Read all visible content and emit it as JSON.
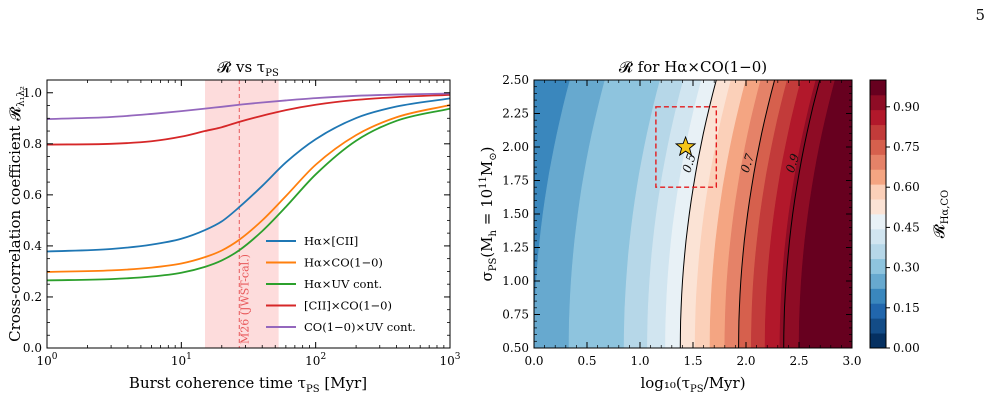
{
  "page_number": "5",
  "chart_data": [
    {
      "type": "line",
      "title": "𝓡 vs τ",
      "title_sub": "PS",
      "xlabel": "Burst coherence time τ",
      "xlabel_sub": "PS",
      "xlabel_unit": " [Myr]",
      "ylabel": "Cross-correlation coefficient 𝓡",
      "ylabel_sub": "λ₁λ₂",
      "x_scale": "log",
      "xlim": [
        1,
        1000
      ],
      "ylim": [
        0,
        1.05
      ],
      "x_ticks": [
        {
          "v": 1,
          "base": "10",
          "exp": "0"
        },
        {
          "v": 10,
          "base": "10",
          "exp": "1"
        },
        {
          "v": 100,
          "base": "10",
          "exp": "2"
        },
        {
          "v": 1000,
          "base": "10",
          "exp": "3"
        }
      ],
      "y_ticks": [
        {
          "v": 0.0,
          "label": "0.0"
        },
        {
          "v": 0.2,
          "label": "0.2"
        },
        {
          "v": 0.4,
          "label": "0.4"
        },
        {
          "v": 0.6,
          "label": "0.6"
        },
        {
          "v": 0.8,
          "label": "0.8"
        },
        {
          "v": 1.0,
          "label": "1.0"
        }
      ],
      "shaded_band": {
        "x_range": [
          15,
          53
        ],
        "color": "#fddcdc"
      },
      "vline": {
        "x": 27,
        "color": "#e8585a",
        "label": "M26 (JWST-cal.)"
      },
      "legend_position": "lower-right",
      "series": [
        {
          "name": "Hα×[CII]",
          "color": "#1f77b4",
          "x": [
            1,
            3,
            6,
            10,
            15,
            20,
            27,
            40,
            60,
            100,
            200,
            400,
            1000
          ],
          "y": [
            0.378,
            0.388,
            0.405,
            0.428,
            0.462,
            0.496,
            0.552,
            0.635,
            0.727,
            0.818,
            0.901,
            0.946,
            0.978
          ]
        },
        {
          "name": "Hα×CO(1−0)",
          "color": "#ff7f0e",
          "x": [
            1,
            3,
            6,
            10,
            15,
            20,
            27,
            40,
            60,
            100,
            200,
            400,
            1000
          ],
          "y": [
            0.298,
            0.304,
            0.315,
            0.331,
            0.356,
            0.382,
            0.424,
            0.5,
            0.595,
            0.718,
            0.834,
            0.904,
            0.952
          ]
        },
        {
          "name": "Hα×UV cont.",
          "color": "#2ca02c",
          "x": [
            1,
            3,
            6,
            10,
            15,
            20,
            27,
            40,
            60,
            100,
            200,
            400,
            1000
          ],
          "y": [
            0.265,
            0.27,
            0.28,
            0.295,
            0.318,
            0.343,
            0.383,
            0.458,
            0.553,
            0.68,
            0.812,
            0.89,
            0.938
          ]
        },
        {
          "name": "[CII]×CO(1−0)",
          "color": "#d62728",
          "x": [
            1,
            3,
            6,
            10,
            15,
            20,
            27,
            40,
            60,
            100,
            200,
            400,
            1000
          ],
          "y": [
            0.797,
            0.8,
            0.81,
            0.828,
            0.85,
            0.865,
            0.886,
            0.91,
            0.932,
            0.953,
            0.972,
            0.983,
            0.992
          ]
        },
        {
          "name": "CO(1−0)×UV cont.",
          "color": "#9467bd",
          "x": [
            1,
            3,
            6,
            10,
            15,
            20,
            27,
            40,
            60,
            100,
            200,
            400,
            1000
          ],
          "y": [
            0.897,
            0.905,
            0.917,
            0.928,
            0.938,
            0.945,
            0.953,
            0.962,
            0.97,
            0.979,
            0.988,
            0.993,
            0.997
          ]
        }
      ]
    },
    {
      "type": "heatmap",
      "title": "𝓡 for Hα×CO(1−0)",
      "xlabel": "log₁₀(τ",
      "xlabel_sub": "PS",
      "xlabel_tail": "/Myr)",
      "ylabel": "σ",
      "ylabel_sub": "PS",
      "ylabel_tail": "(M",
      "ylabel_sub2": "h",
      "ylabel_tail2": " = 10",
      "ylabel_sup": "11",
      "ylabel_tail3": "M",
      "ylabel_sub3": "⊙",
      "ylabel_end": ")",
      "xlim": [
        0.0,
        3.0
      ],
      "ylim": [
        0.5,
        2.5
      ],
      "x_ticks": [
        "0.0",
        "0.5",
        "1.0",
        "1.5",
        "2.0",
        "2.5",
        "3.0"
      ],
      "y_ticks": [
        "0.50",
        "0.75",
        "1.00",
        "1.25",
        "1.50",
        "1.75",
        "2.00",
        "2.25",
        "2.50"
      ],
      "colorbar": {
        "label": "𝓡",
        "label_sub": "Hα,CO",
        "range": [
          0.0,
          1.0
        ],
        "ticks": [
          "0.00",
          "0.15",
          "0.30",
          "0.45",
          "0.60",
          "0.75",
          "0.90"
        ],
        "colors": [
          "#053061",
          "#134c87",
          "#2166ac",
          "#3a87bd",
          "#67a9cf",
          "#8ec4de",
          "#b6d7e8",
          "#d1e5f0",
          "#e8f1f6",
          "#fbe3d5",
          "#fbd0b9",
          "#f4a582",
          "#e58268",
          "#d6604d",
          "#c23b3a",
          "#b2182b",
          "#8e0c25",
          "#67001f"
        ]
      },
      "contour_labels": [
        "0.5",
        "0.7",
        "0.9"
      ],
      "marker": {
        "x": 1.43,
        "y": 2.0,
        "shape": "star",
        "color": "#f5c518"
      },
      "highlight_box": {
        "x_range": [
          1.15,
          1.72
        ],
        "y_range": [
          1.7,
          2.3
        ],
        "color": "#e41a1c"
      }
    }
  ]
}
